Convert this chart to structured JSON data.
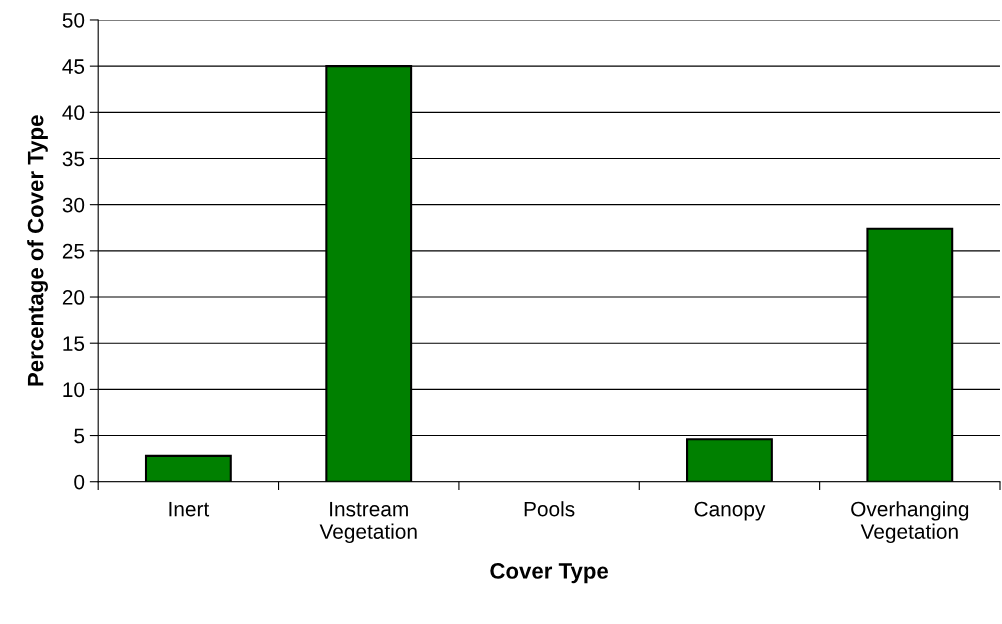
{
  "chart_data": {
    "type": "bar",
    "xlabel": "Cover Type",
    "ylabel": "Percentage of Cover Type",
    "categories": [
      "Inert",
      "Instream\nVegetation",
      "Pools",
      "Canopy",
      "Overhanging\nVegetation"
    ],
    "values": [
      2.8,
      45,
      0,
      4.6,
      27.4
    ],
    "color": "#008000",
    "ylim": [
      0,
      50
    ],
    "yticks": [
      0,
      5,
      10,
      15,
      20,
      25,
      30,
      35,
      40,
      45,
      50
    ],
    "grid": "y",
    "legend": false
  }
}
